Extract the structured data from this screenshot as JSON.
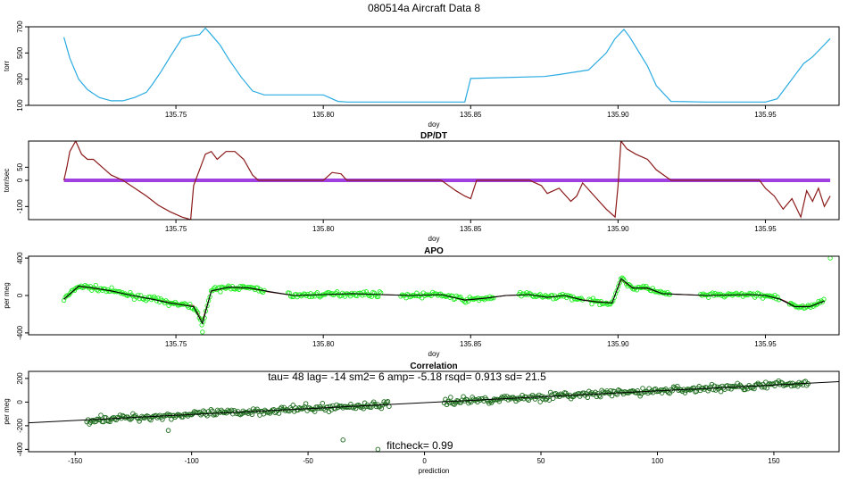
{
  "figure_title": "080514a   Aircraft Data 8",
  "colors": {
    "pressure": "#29abe2",
    "dpdt": "#8b1a1a",
    "dpdt_zero": "#a040e0",
    "apo_points": "#22ee22",
    "apo_line": "#000000",
    "apo_red": "#8b1a1a",
    "corr_points": "#1a6b1a",
    "fit_line": "#000000"
  },
  "chart_data": [
    {
      "id": "pressure",
      "type": "line",
      "title": "",
      "xlabel": "doy",
      "ylabel": "torr",
      "xlim": [
        135.7,
        135.975
      ],
      "ylim": [
        100,
        700
      ],
      "xticks": [
        135.75,
        135.8,
        135.85,
        135.9,
        135.95
      ],
      "xtick_labels": [
        "135.75",
        "135.80",
        "135.85",
        "135.90",
        "135.95"
      ],
      "yticks": [
        100,
        300,
        500,
        700
      ],
      "ytick_labels": [
        "100",
        "300",
        "500",
        "700"
      ],
      "series": [
        {
          "x": [
            135.712,
            135.714,
            135.717,
            135.72,
            135.724,
            135.728,
            135.732,
            135.736,
            135.74,
            135.742,
            135.745,
            135.748,
            135.752,
            135.755,
            135.758,
            135.76,
            135.762,
            135.765,
            135.768,
            135.772,
            135.776,
            135.78,
            135.8,
            135.805,
            135.808,
            135.848,
            135.85,
            135.875,
            135.88,
            135.89,
            135.896,
            135.899,
            135.902,
            135.904,
            135.91,
            135.913,
            135.918,
            135.93,
            135.95,
            135.954,
            135.957,
            135.96,
            135.963,
            135.966,
            135.969,
            135.972
          ],
          "y": [
            620,
            460,
            300,
            220,
            160,
            135,
            135,
            160,
            200,
            260,
            360,
            470,
            610,
            630,
            640,
            690,
            640,
            560,
            450,
            320,
            210,
            180,
            180,
            130,
            125,
            125,
            305,
            320,
            335,
            370,
            500,
            610,
            680,
            620,
            400,
            250,
            130,
            125,
            125,
            150,
            240,
            330,
            420,
            470,
            540,
            610
          ]
        }
      ]
    },
    {
      "id": "dpdt",
      "type": "line",
      "title": "DP/DT",
      "xlabel": "doy",
      "ylabel": "torr/sec",
      "xlim": [
        135.7,
        135.975
      ],
      "ylim": [
        -150,
        150
      ],
      "xticks": [
        135.75,
        135.8,
        135.85,
        135.9,
        135.95
      ],
      "xtick_labels": [
        "135.75",
        "135.80",
        "135.85",
        "135.90",
        "135.95"
      ],
      "yticks": [
        -100,
        0,
        50
      ],
      "ytick_labels": [
        "-100",
        "0",
        "50"
      ],
      "series": [
        {
          "x": [
            135.712,
            135.713,
            135.714,
            135.716,
            135.718,
            135.72,
            135.722,
            135.725,
            135.728,
            135.732,
            135.736,
            135.74,
            135.744,
            135.748,
            135.752,
            135.755,
            135.756,
            135.758,
            135.76,
            135.762,
            135.764,
            135.767,
            135.77,
            135.773,
            135.776,
            135.778,
            135.78,
            135.8,
            135.803,
            135.806,
            135.808,
            135.812,
            135.815,
            135.818,
            135.83,
            135.84,
            135.845,
            135.848,
            135.85,
            135.852,
            135.87,
            135.874,
            135.876,
            135.88,
            135.884,
            135.886,
            135.888,
            135.892,
            135.896,
            135.899,
            135.9,
            135.901,
            135.903,
            135.906,
            135.91,
            135.913,
            135.918,
            135.93,
            135.948,
            135.95,
            135.953,
            135.956,
            135.959,
            135.962,
            135.964,
            135.966,
            135.968,
            135.97,
            135.972
          ],
          "y": [
            0,
            50,
            110,
            150,
            100,
            80,
            80,
            50,
            20,
            0,
            -30,
            -60,
            -95,
            -120,
            -140,
            -150,
            -20,
            40,
            100,
            110,
            80,
            110,
            110,
            80,
            20,
            0,
            0,
            0,
            30,
            25,
            0,
            0,
            0,
            0,
            0,
            0,
            -40,
            -60,
            -70,
            0,
            0,
            -20,
            -50,
            -30,
            -80,
            -60,
            -10,
            -60,
            -110,
            -140,
            -20,
            150,
            120,
            100,
            80,
            40,
            0,
            0,
            0,
            -30,
            -60,
            -110,
            -70,
            -140,
            -40,
            -80,
            -30,
            -100,
            -60
          ]
        }
      ]
    },
    {
      "id": "apo",
      "type": "scatter",
      "title": "APO",
      "xlabel": "doy",
      "ylabel": "per meg",
      "xlim": [
        135.7,
        135.975
      ],
      "ylim": [
        -420,
        420
      ],
      "xticks": [
        135.75,
        135.8,
        135.85,
        135.9,
        135.95
      ],
      "xtick_labels": [
        "135.75",
        "135.80",
        "135.85",
        "135.90",
        "135.95"
      ],
      "yticks": [
        -400,
        0,
        400
      ],
      "ytick_labels": [
        "-400",
        "0",
        "400"
      ],
      "series": [
        {
          "x": [
            135.712,
            135.717,
            135.722,
            135.728,
            135.735,
            135.742,
            135.748,
            135.752,
            135.756,
            135.759,
            135.762,
            135.768,
            135.775,
            135.782,
            135.79,
            135.8,
            135.81,
            135.82,
            135.83,
            135.84,
            135.848,
            135.855,
            135.862,
            135.87,
            135.876,
            135.882,
            135.888,
            135.893,
            135.898,
            135.901,
            135.905,
            135.91,
            135.915,
            135.93,
            135.945,
            135.95,
            135.955,
            135.96,
            135.965,
            135.97
          ],
          "y": [
            -40,
            100,
            80,
            50,
            0,
            -40,
            -80,
            -100,
            -120,
            -300,
            50,
            90,
            80,
            40,
            0,
            10,
            20,
            10,
            0,
            10,
            -50,
            -30,
            0,
            10,
            -20,
            0,
            -50,
            -70,
            -80,
            180,
            80,
            80,
            20,
            0,
            10,
            0,
            -40,
            -120,
            -120,
            -60
          ]
        }
      ],
      "annotation_points": [
        [
          135.759,
          -390
        ],
        [
          135.972,
          400
        ]
      ]
    },
    {
      "id": "correlation",
      "type": "scatter",
      "title": "Correlation",
      "xlabel": "prediction",
      "ylabel": "per meg",
      "xlim": [
        -170,
        178
      ],
      "ylim": [
        -420,
        260
      ],
      "xticks": [
        -150,
        -100,
        -50,
        0,
        50,
        100,
        150
      ],
      "xtick_labels": [
        "-150",
        "-100",
        "-50",
        "0",
        "50",
        "100",
        "150"
      ],
      "yticks": [
        -400,
        -200,
        0,
        200
      ],
      "ytick_labels": [
        "-400",
        "-200",
        "0",
        "200"
      ],
      "fit": {
        "slope": 1.0,
        "intercept": -5.18
      },
      "point_range": {
        "x": [
          -145,
          165
        ],
        "y_offset": -5.18
      },
      "outliers": [
        [
          -20,
          -400
        ],
        [
          -35,
          -320
        ],
        [
          -110,
          -240
        ]
      ],
      "annotation_top": "tau= 48 lag= -14 sm2= 6 amp= -5.18 rsqd= 0.913 sd= 21.5",
      "annotation_bottom": "fitcheck= 0.99"
    }
  ]
}
